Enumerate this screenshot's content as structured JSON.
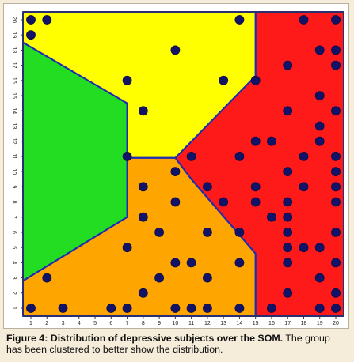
{
  "chart_data": {
    "type": "scatter",
    "xlim": [
      1,
      20
    ],
    "ylim": [
      1,
      20
    ],
    "x_ticks": [
      "1",
      "2",
      "3",
      "4",
      "5",
      "6",
      "7",
      "8",
      "9",
      "10",
      "11",
      "12",
      "13",
      "14",
      "15",
      "16",
      "17",
      "18",
      "19",
      "20"
    ],
    "y_ticks": [
      "1",
      "2",
      "3",
      "4",
      "5",
      "6",
      "7",
      "8",
      "9",
      "10",
      "11",
      "12",
      "13",
      "14",
      "15",
      "16",
      "17",
      "18",
      "19",
      "20"
    ],
    "grid": false,
    "cluster_colors": {
      "yellow": "#ffff00",
      "green": "#22dd22",
      "orange": "#ffa500",
      "red": "#ff1a1a",
      "boundary": "#1f2bb0",
      "point": "#121266"
    },
    "clusters": [
      {
        "color": "yellow",
        "polygon": [
          [
            1,
            20
          ],
          [
            15,
            20
          ],
          [
            15,
            16.3
          ],
          [
            10,
            10.9
          ],
          [
            7,
            10.9
          ],
          [
            7,
            14.5
          ],
          [
            1,
            18.5
          ]
        ]
      },
      {
        "color": "green",
        "polygon": [
          [
            1,
            18.5
          ],
          [
            7,
            14.5
          ],
          [
            7,
            7
          ],
          [
            1,
            2.8
          ]
        ]
      },
      {
        "color": "orange",
        "polygon": [
          [
            1,
            2.8
          ],
          [
            7,
            7
          ],
          [
            7,
            10.9
          ],
          [
            10,
            10.9
          ],
          [
            11,
            9.5
          ],
          [
            15,
            4.6
          ],
          [
            15,
            1
          ],
          [
            1,
            1
          ]
        ]
      },
      {
        "color": "red",
        "polygon": [
          [
            15,
            20
          ],
          [
            20,
            20
          ],
          [
            20,
            1
          ],
          [
            15,
            1
          ],
          [
            15,
            4.6
          ],
          [
            11,
            9.5
          ],
          [
            10,
            10.9
          ],
          [
            15,
            16.3
          ]
        ]
      }
    ],
    "points": [
      [
        1,
        20
      ],
      [
        2,
        20
      ],
      [
        14,
        20
      ],
      [
        18,
        20
      ],
      [
        20,
        20
      ],
      [
        1,
        19
      ],
      [
        10,
        18
      ],
      [
        19,
        18
      ],
      [
        20,
        18
      ],
      [
        17,
        17
      ],
      [
        20,
        17
      ],
      [
        7,
        16
      ],
      [
        13,
        16
      ],
      [
        15,
        16
      ],
      [
        19,
        15
      ],
      [
        8,
        14
      ],
      [
        17,
        14
      ],
      [
        20,
        14
      ],
      [
        19,
        13
      ],
      [
        15,
        12
      ],
      [
        16,
        12
      ],
      [
        19,
        12
      ],
      [
        7,
        11
      ],
      [
        11,
        11
      ],
      [
        14,
        11
      ],
      [
        18,
        11
      ],
      [
        20,
        11
      ],
      [
        10,
        10
      ],
      [
        17,
        10
      ],
      [
        20,
        10
      ],
      [
        8,
        9
      ],
      [
        12,
        9
      ],
      [
        15,
        9
      ],
      [
        18,
        9
      ],
      [
        20,
        9
      ],
      [
        10,
        8
      ],
      [
        13,
        8
      ],
      [
        15,
        8
      ],
      [
        17,
        8
      ],
      [
        20,
        8
      ],
      [
        8,
        7
      ],
      [
        16,
        7
      ],
      [
        17,
        7
      ],
      [
        9,
        6
      ],
      [
        12,
        6
      ],
      [
        14,
        6
      ],
      [
        17,
        6
      ],
      [
        20,
        6
      ],
      [
        7,
        5
      ],
      [
        17,
        5
      ],
      [
        18,
        5
      ],
      [
        19,
        5
      ],
      [
        10,
        4
      ],
      [
        11,
        4
      ],
      [
        14,
        4
      ],
      [
        17,
        4
      ],
      [
        20,
        4
      ],
      [
        2,
        3
      ],
      [
        9,
        3
      ],
      [
        12,
        3
      ],
      [
        19,
        3
      ],
      [
        8,
        2
      ],
      [
        17,
        2
      ],
      [
        20,
        2
      ],
      [
        1,
        1
      ],
      [
        3,
        1
      ],
      [
        6,
        1
      ],
      [
        7,
        1
      ],
      [
        10,
        1
      ],
      [
        11,
        1
      ],
      [
        12,
        1
      ],
      [
        14,
        1
      ],
      [
        16,
        1
      ],
      [
        19,
        1
      ],
      [
        20,
        1
      ]
    ]
  },
  "caption": {
    "label": "Figure 4:",
    "title": "Distribution of depressive subjects over the SOM.",
    "text": "The group has been clustered to better show the distribution."
  }
}
